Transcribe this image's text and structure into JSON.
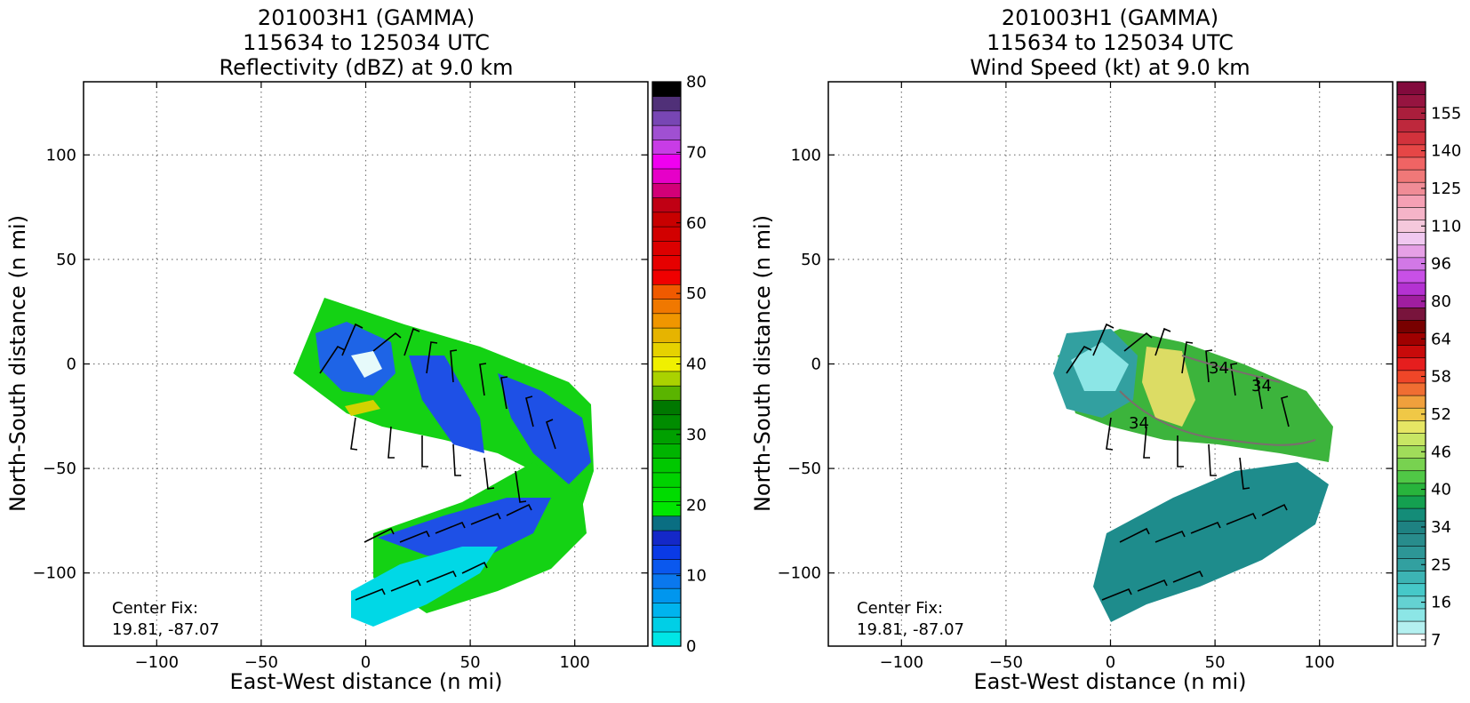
{
  "chart_data": [
    {
      "type": "heatmap",
      "title_lines": [
        "201003H1 (GAMMA)",
        "115634 to 125034 UTC",
        "Reflectivity (dBZ) at 9.0 km"
      ],
      "xlabel": "East-West distance (n mi)",
      "ylabel": "North-South distance (n mi)",
      "xlim": [
        -135,
        135
      ],
      "ylim": [
        -135,
        135
      ],
      "xticks": [
        -100,
        -50,
        0,
        50,
        100
      ],
      "yticks": [
        -100,
        -50,
        0,
        50,
        100
      ],
      "grid": true,
      "annotation_lines": [
        "Center Fix:",
        "19.81, -87.07"
      ],
      "colorbar": {
        "label_values": [
          0,
          10,
          20,
          30,
          40,
          50,
          60,
          70,
          80
        ],
        "vmin": 0,
        "vmax": 80,
        "colors": [
          "#00e6e6",
          "#00cfe6",
          "#00b4ee",
          "#0096ee",
          "#0a78ee",
          "#0a58ee",
          "#0a3ae6",
          "#1428c8",
          "#0a6e82",
          "#00e600",
          "#00dc00",
          "#00d200",
          "#00c800",
          "#00b400",
          "#00a000",
          "#008c00",
          "#007800",
          "#5ab400",
          "#aad200",
          "#f0f000",
          "#e6d200",
          "#e6b400",
          "#f09600",
          "#f07800",
          "#f05a00",
          "#f00000",
          "#e60000",
          "#dc0000",
          "#d20000",
          "#c80000",
          "#c00014",
          "#d20078",
          "#e600c8",
          "#f000f0",
          "#c83ce6",
          "#a050d2",
          "#7846b4",
          "#503078",
          "#000000"
        ]
      }
    },
    {
      "type": "heatmap",
      "title_lines": [
        "201003H1 (GAMMA)",
        "115634 to 125034 UTC",
        "Wind Speed (kt) at 9.0 km"
      ],
      "xlabel": "East-West distance (n mi)",
      "ylabel": "North-South distance (n mi)",
      "xlim": [
        -135,
        135
      ],
      "ylim": [
        -135,
        135
      ],
      "xticks": [
        -100,
        -50,
        0,
        50,
        100
      ],
      "yticks": [
        -100,
        -50,
        0,
        50,
        100
      ],
      "grid": true,
      "annotation_lines": [
        "Center Fix:",
        "19.81, -87.07"
      ],
      "contour_labels": [
        "34",
        "34",
        "34"
      ],
      "colorbar": {
        "label_values": [
          7,
          16,
          25,
          34,
          40,
          46,
          52,
          58,
          64,
          80,
          96,
          110,
          125,
          140,
          155
        ],
        "vmin": 0,
        "vmax": 40,
        "label_positions": [
          0.5,
          3.5,
          6.5,
          9.5,
          12.5,
          15.5,
          18.5,
          21.5,
          24.5,
          27.5,
          30.5,
          33.5,
          36.5,
          39.5,
          42.5
        ],
        "colors": [
          "#ffffff",
          "#b4f0f0",
          "#8ce6e6",
          "#64d2d2",
          "#46c8c8",
          "#3cb4b4",
          "#32a0a0",
          "#2d9696",
          "#288c8c",
          "#1e8282",
          "#148c78",
          "#14a050",
          "#28b43c",
          "#50c846",
          "#78d250",
          "#a0dc5a",
          "#c8e664",
          "#e6e664",
          "#f0c846",
          "#f0a03c",
          "#f06e32",
          "#f04628",
          "#e61e1e",
          "#c80a0a",
          "#a00000",
          "#780000",
          "#78143c",
          "#a01ea0",
          "#b432d2",
          "#c850e6",
          "#d278e6",
          "#e6a0e6",
          "#f0c8f0",
          "#f5c8dc",
          "#f5b4c8",
          "#f5a0b4",
          "#f08c96",
          "#f07878",
          "#f06464",
          "#e64646",
          "#d2323c",
          "#be283c",
          "#aa1e3c",
          "#961440",
          "#820a3c"
        ]
      }
    }
  ]
}
